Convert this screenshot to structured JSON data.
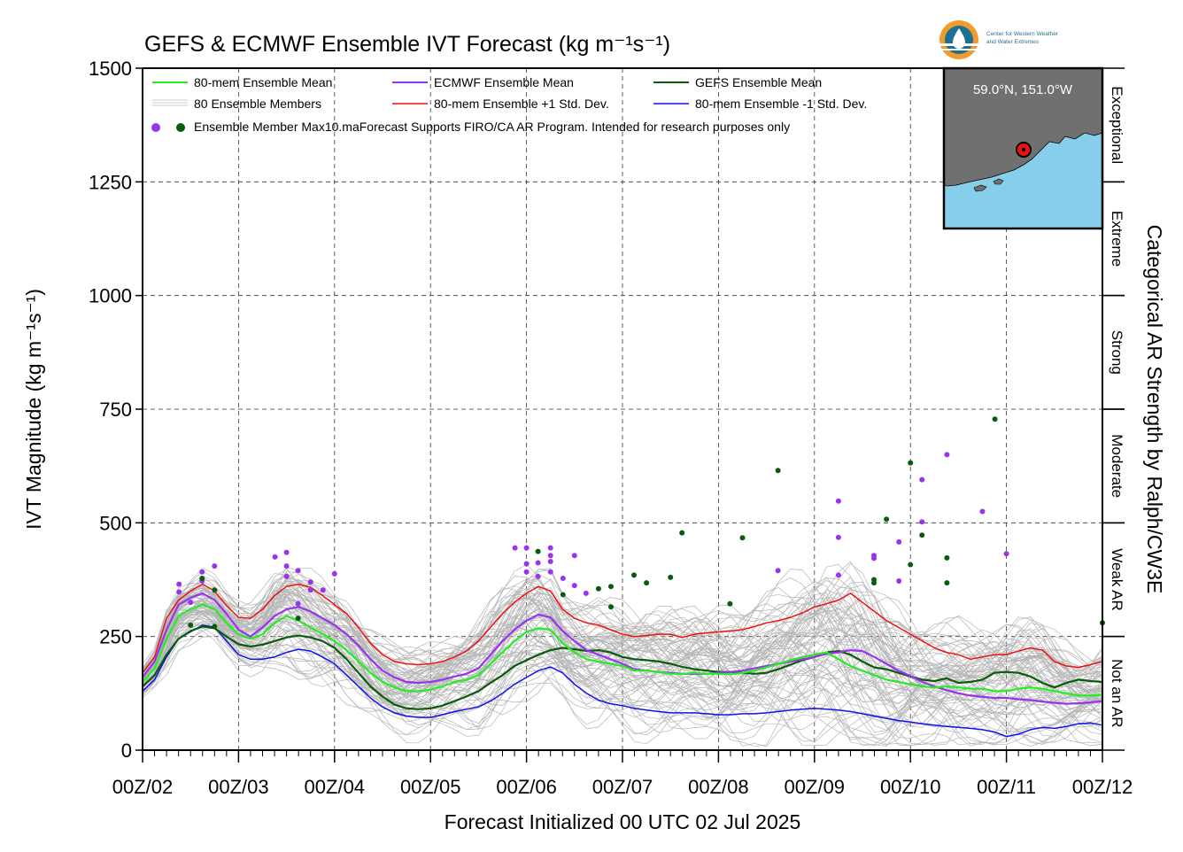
{
  "chart_data": {
    "type": "line",
    "title": "GEFS & ECMWF Ensemble IVT Forecast (kg m⁻¹s⁻¹)",
    "xlabel": "Forecast Initialized 00 UTC 02 Jul 2025",
    "ylabel": "IVT Magnitude (kg m⁻¹s⁻¹)",
    "right_label": "Categorical AR Strength by Ralph/CW3E",
    "ylim": [
      0,
      1500
    ],
    "xlim": [
      0,
      10
    ],
    "yticks": [
      "0",
      "250",
      "500",
      "750",
      "1000",
      "1250",
      "1500"
    ],
    "yticks_values": [
      0,
      250,
      500,
      750,
      1000,
      1250,
      1500
    ],
    "xticks": [
      "00Z/02",
      "00Z/03",
      "00Z/04",
      "00Z/05",
      "00Z/06",
      "00Z/07",
      "00Z/08",
      "00Z/09",
      "00Z/10",
      "00Z/11",
      "00Z/12"
    ],
    "grid": true,
    "categories": [
      {
        "label": "Not an AR",
        "range": [
          0,
          250
        ]
      },
      {
        "label": "Weak AR",
        "range": [
          250,
          500
        ]
      },
      {
        "label": "Moderate",
        "range": [
          500,
          750
        ]
      },
      {
        "label": "Strong",
        "range": [
          750,
          1000
        ]
      },
      {
        "label": "Extreme",
        "range": [
          1000,
          1250
        ]
      },
      {
        "label": "Exceptional",
        "range": [
          1250,
          1500
        ]
      }
    ],
    "legend": [
      {
        "label": "80-mem Ensemble Mean",
        "color": "#22ee22"
      },
      {
        "label": "ECMWF Ensemble Mean",
        "color": "#9933ee"
      },
      {
        "label": "GEFS Ensemble Mean",
        "color": "#0a5c0a"
      },
      {
        "label": "80 Ensemble Members",
        "color": "#aaaaaa"
      },
      {
        "label": "80-mem Ensemble +1 Std. Dev.",
        "color": "#ee1111"
      },
      {
        "label": "80-mem Ensemble -1 Std. Dev.",
        "color": "#1111ee"
      }
    ],
    "legend_note": "Ensemble Member Max",
    "disclaimer": "10.maForecast Supports FIRO/CA AR Program. Intended for research purposes only",
    "location": "59.0°N, 151.0°W",
    "logo_text": [
      "Center for Western Weather",
      "and Water Extremes"
    ],
    "x": [
      0,
      0.125,
      0.25,
      0.375,
      0.5,
      0.625,
      0.75,
      0.875,
      1.0,
      1.125,
      1.25,
      1.375,
      1.5,
      1.625,
      1.75,
      1.875,
      2.0,
      2.125,
      2.25,
      2.375,
      2.5,
      2.625,
      2.75,
      2.875,
      3.0,
      3.125,
      3.25,
      3.375,
      3.5,
      3.625,
      3.75,
      3.875,
      4.0,
      4.125,
      4.25,
      4.375,
      4.5,
      4.625,
      4.75,
      4.875,
      5.0,
      5.125,
      5.25,
      5.375,
      5.5,
      5.625,
      5.75,
      5.875,
      6.0,
      6.125,
      6.25,
      6.375,
      6.5,
      6.625,
      6.75,
      6.875,
      7.0,
      7.125,
      7.25,
      7.375,
      7.5,
      7.625,
      7.75,
      7.875,
      8.0,
      8.125,
      8.25,
      8.375,
      8.5,
      8.625,
      8.75,
      8.875,
      9.0,
      9.125,
      9.25,
      9.375,
      9.5,
      9.625,
      9.75,
      9.875,
      10.0
    ],
    "series": [
      {
        "name": "80-mem Ensemble Mean",
        "color": "#22ee22",
        "width": 2.2,
        "values": [
          150,
          180,
          245,
          295,
          310,
          320,
          310,
          280,
          255,
          245,
          255,
          280,
          295,
          285,
          270,
          255,
          240,
          220,
          195,
          170,
          150,
          138,
          130,
          130,
          133,
          140,
          150,
          155,
          165,
          190,
          215,
          240,
          260,
          268,
          265,
          235,
          215,
          200,
          195,
          190,
          185,
          175,
          175,
          172,
          168,
          168,
          170,
          168,
          168,
          167,
          170,
          175,
          182,
          190,
          198,
          205,
          210,
          215,
          200,
          185,
          175,
          165,
          155,
          150,
          145,
          140,
          138,
          140,
          138,
          135,
          135,
          130,
          130,
          135,
          138,
          135,
          130,
          125,
          120,
          120,
          122
        ]
      },
      {
        "name": "ECMWF Ensemble Mean",
        "color": "#9933ee",
        "width": 2.2,
        "values": [
          160,
          195,
          265,
          320,
          335,
          345,
          330,
          300,
          265,
          250,
          270,
          295,
          310,
          315,
          305,
          290,
          275,
          255,
          230,
          200,
          175,
          160,
          150,
          148,
          150,
          155,
          162,
          168,
          180,
          210,
          240,
          265,
          285,
          298,
          292,
          262,
          240,
          220,
          210,
          200,
          190,
          178,
          175,
          172,
          170,
          168,
          168,
          168,
          170,
          172,
          175,
          180,
          185,
          190,
          195,
          200,
          205,
          212,
          215,
          220,
          218,
          205,
          190,
          175,
          163,
          150,
          140,
          132,
          125,
          120,
          117,
          115,
          115,
          112,
          110,
          107,
          104,
          102,
          103,
          105,
          108
        ]
      },
      {
        "name": "GEFS Ensemble Mean",
        "color": "#0a5c0a",
        "width": 2.2,
        "values": [
          140,
          165,
          210,
          245,
          262,
          272,
          268,
          250,
          233,
          228,
          232,
          240,
          248,
          252,
          248,
          240,
          225,
          200,
          170,
          140,
          118,
          100,
          92,
          90,
          92,
          98,
          108,
          118,
          130,
          148,
          165,
          185,
          198,
          210,
          220,
          225,
          222,
          218,
          220,
          215,
          205,
          200,
          198,
          195,
          190,
          183,
          178,
          175,
          172,
          172,
          170,
          168,
          170,
          178,
          188,
          198,
          205,
          215,
          218,
          210,
          195,
          182,
          178,
          170,
          162,
          155,
          152,
          158,
          148,
          150,
          155,
          170,
          172,
          170,
          162,
          148,
          138,
          148,
          155,
          152,
          150
        ]
      },
      {
        "name": "80-mem Ensemble +1 Std. Dev.",
        "color": "#ee1111",
        "width": 1.5,
        "values": [
          170,
          205,
          290,
          330,
          350,
          365,
          350,
          318,
          292,
          290,
          310,
          340,
          360,
          365,
          358,
          340,
          320,
          300,
          270,
          235,
          210,
          195,
          190,
          188,
          190,
          195,
          205,
          218,
          240,
          270,
          300,
          325,
          345,
          360,
          350,
          310,
          290,
          280,
          275,
          265,
          255,
          250,
          252,
          255,
          255,
          248,
          255,
          258,
          260,
          262,
          265,
          272,
          280,
          285,
          292,
          302,
          315,
          322,
          330,
          345,
          325,
          305,
          285,
          270,
          255,
          240,
          225,
          215,
          210,
          200,
          205,
          210,
          210,
          218,
          225,
          220,
          195,
          185,
          182,
          188,
          195
        ]
      },
      {
        "name": "80-mem Ensemble -1 Std. Dev.",
        "color": "#1111ee",
        "width": 1.5,
        "values": [
          130,
          155,
          205,
          245,
          260,
          275,
          270,
          240,
          210,
          200,
          200,
          205,
          215,
          222,
          218,
          205,
          190,
          165,
          140,
          115,
          95,
          82,
          75,
          72,
          72,
          78,
          85,
          90,
          95,
          108,
          125,
          145,
          160,
          175,
          183,
          170,
          145,
          125,
          110,
          102,
          98,
          92,
          88,
          85,
          82,
          82,
          82,
          80,
          78,
          78,
          80,
          80,
          82,
          85,
          88,
          90,
          92,
          90,
          88,
          85,
          80,
          75,
          70,
          65,
          62,
          58,
          55,
          52,
          50,
          48,
          45,
          40,
          30,
          35,
          45,
          50,
          48,
          52,
          58,
          60,
          55
        ]
      }
    ],
    "member_max_ecmwf": [
      [
        0.38,
        365
      ],
      [
        0.38,
        348
      ],
      [
        0.5,
        325
      ],
      [
        0.62,
        392
      ],
      [
        0.62,
        372
      ],
      [
        0.75,
        405
      ],
      [
        1.38,
        425
      ],
      [
        1.5,
        435
      ],
      [
        1.5,
        405
      ],
      [
        1.5,
        382
      ],
      [
        1.62,
        395
      ],
      [
        1.62,
        322
      ],
      [
        1.75,
        352
      ],
      [
        1.75,
        370
      ],
      [
        1.88,
        352
      ],
      [
        2.0,
        388
      ],
      [
        3.88,
        445
      ],
      [
        4.0,
        445
      ],
      [
        4.0,
        410
      ],
      [
        4.0,
        392
      ],
      [
        4.12,
        412
      ],
      [
        4.12,
        382
      ],
      [
        4.25,
        445
      ],
      [
        4.25,
        428
      ],
      [
        4.25,
        415
      ],
      [
        4.25,
        392
      ],
      [
        4.38,
        378
      ],
      [
        4.5,
        428
      ],
      [
        4.5,
        362
      ],
      [
        4.62,
        345
      ],
      [
        6.62,
        395
      ],
      [
        7.25,
        548
      ],
      [
        7.25,
        468
      ],
      [
        7.25,
        385
      ],
      [
        7.62,
        428
      ],
      [
        7.62,
        422
      ],
      [
        7.88,
        458
      ],
      [
        7.88,
        372
      ],
      [
        8.12,
        595
      ],
      [
        8.12,
        502
      ],
      [
        8.38,
        650
      ],
      [
        8.75,
        525
      ],
      [
        9.0,
        432
      ]
    ],
    "member_max_gefs": [
      [
        0.5,
        275
      ],
      [
        0.62,
        378
      ],
      [
        0.75,
        352
      ],
      [
        0.75,
        272
      ],
      [
        1.62,
        290
      ],
      [
        4.12,
        437
      ],
      [
        4.38,
        342
      ],
      [
        4.75,
        355
      ],
      [
        4.88,
        360
      ],
      [
        4.88,
        315
      ],
      [
        5.12,
        385
      ],
      [
        5.25,
        368
      ],
      [
        5.5,
        380
      ],
      [
        5.62,
        478
      ],
      [
        6.12,
        322
      ],
      [
        6.25,
        467
      ],
      [
        6.62,
        615
      ],
      [
        7.62,
        375
      ],
      [
        7.62,
        368
      ],
      [
        7.75,
        508
      ],
      [
        8.0,
        632
      ],
      [
        8.0,
        408
      ],
      [
        8.12,
        473
      ],
      [
        8.38,
        423
      ],
      [
        8.38,
        368
      ],
      [
        8.88,
        728
      ],
      [
        10.0,
        280
      ]
    ]
  }
}
